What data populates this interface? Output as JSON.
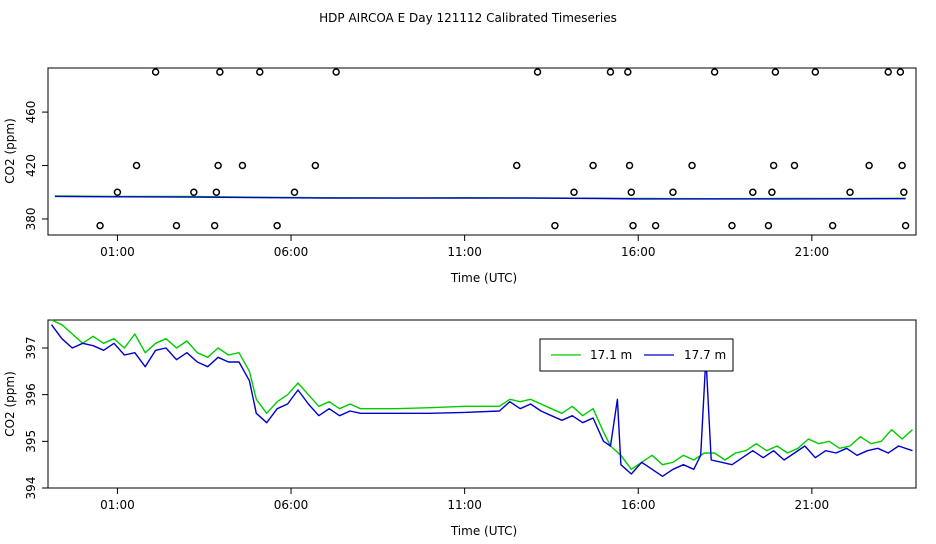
{
  "title": "HDP AIRCOA E  Day 121112  Calibrated Timeseries",
  "chart_data": [
    {
      "type": "scatter",
      "xlabel": "Time (UTC)",
      "ylabel": "CO2 (ppm)",
      "xlim": [
        -1.0,
        24.0
      ],
      "ylim": [
        368,
        493
      ],
      "x_ticks": [
        1,
        6,
        11,
        16,
        21
      ],
      "x_tick_labels": [
        "01:00",
        "06:00",
        "11:00",
        "16:00",
        "21:00"
      ],
      "y_ticks": [
        380,
        420,
        460
      ],
      "y_tick_labels": [
        "380",
        "420",
        "460"
      ],
      "grid": false,
      "points_x": [
        0.5,
        1.0,
        1.55,
        2.1,
        2.7,
        3.2,
        3.8,
        3.85,
        3.9,
        3.95,
        4.6,
        5.1,
        5.6,
        6.1,
        6.7,
        7.3,
        12.5,
        13.1,
        13.6,
        14.15,
        14.7,
        15.2,
        15.7,
        15.75,
        15.8,
        15.85,
        16.5,
        17.0,
        17.55,
        18.2,
        18.7,
        19.3,
        19.75,
        19.85,
        19.9,
        19.95,
        20.5,
        21.1,
        21.6,
        22.1,
        22.65,
        23.2,
        23.55,
        23.6,
        23.65,
        23.7
      ],
      "points_y": [
        375,
        400,
        420,
        490,
        375,
        400,
        375,
        400,
        420,
        490,
        420,
        490,
        375,
        400,
        420,
        490,
        420,
        490,
        375,
        400,
        420,
        490,
        490,
        420,
        400,
        375,
        375,
        400,
        420,
        490,
        375,
        400,
        375,
        400,
        420,
        490,
        420,
        490,
        375,
        400,
        420,
        490,
        490,
        420,
        400,
        375
      ],
      "series": [
        {
          "x": [
            -0.8,
            1,
            3,
            5,
            7,
            9,
            11,
            13,
            15,
            16,
            18,
            20,
            22,
            23.7
          ],
          "y": [
            397.2,
            396.9,
            396.8,
            396.3,
            395.9,
            395.8,
            395.9,
            395.8,
            395.5,
            395.3,
            395.2,
            395.3,
            395.4,
            395.5
          ]
        },
        {
          "x": [
            -0.8,
            1,
            3,
            5,
            7,
            9,
            11,
            13,
            15,
            16,
            18,
            20,
            22,
            23.7
          ],
          "y": [
            396.9,
            396.6,
            396.4,
            396.0,
            395.6,
            395.6,
            395.6,
            395.6,
            395.3,
            395.0,
            395.0,
            395.0,
            395.1,
            395.2
          ]
        }
      ]
    },
    {
      "type": "line",
      "xlabel": "Time (UTC)",
      "ylabel": "CO2 (ppm)",
      "xlim": [
        -1.0,
        24.0
      ],
      "ylim": [
        394,
        397.6
      ],
      "x_ticks": [
        1,
        6,
        11,
        16,
        21
      ],
      "x_tick_labels": [
        "01:00",
        "06:00",
        "11:00",
        "16:00",
        "21:00"
      ],
      "y_ticks": [
        394,
        395,
        396,
        397
      ],
      "y_tick_labels": [
        "394",
        "395",
        "396",
        "397"
      ],
      "grid": false,
      "legend_position": "top-right",
      "series": [
        {
          "name": "17.1 m",
          "color": "#00cc00",
          "x": [
            -0.9,
            -0.6,
            -0.3,
            0.0,
            0.3,
            0.6,
            0.9,
            1.2,
            1.5,
            1.8,
            2.1,
            2.4,
            2.7,
            3.0,
            3.3,
            3.6,
            3.9,
            4.2,
            4.5,
            4.8,
            5.0,
            5.3,
            5.6,
            5.9,
            6.2,
            6.5,
            6.8,
            7.1,
            7.4,
            7.7,
            8.0,
            9.0,
            10.0,
            11.0,
            12.0,
            12.3,
            12.6,
            12.9,
            13.2,
            13.5,
            13.8,
            14.1,
            14.4,
            14.7,
            15.0,
            15.2,
            15.5,
            15.8,
            16.1,
            16.4,
            16.7,
            17.0,
            17.3,
            17.6,
            17.9,
            18.2,
            18.5,
            18.8,
            19.1,
            19.4,
            19.7,
            20.0,
            20.3,
            20.6,
            20.9,
            21.2,
            21.5,
            21.8,
            22.1,
            22.4,
            22.7,
            23.0,
            23.3,
            23.6,
            23.9
          ],
          "y": [
            397.7,
            397.5,
            397.3,
            397.1,
            397.25,
            397.1,
            397.2,
            397.0,
            397.3,
            396.9,
            397.1,
            397.2,
            397.0,
            397.15,
            396.9,
            396.8,
            397.0,
            396.85,
            396.9,
            396.5,
            395.9,
            395.6,
            395.85,
            396.0,
            396.25,
            396.0,
            395.75,
            395.85,
            395.7,
            395.8,
            395.7,
            395.7,
            395.72,
            395.75,
            395.75,
            395.9,
            395.85,
            395.9,
            395.8,
            395.7,
            395.6,
            395.75,
            395.55,
            395.7,
            395.2,
            394.9,
            394.7,
            394.4,
            394.55,
            394.7,
            394.5,
            394.55,
            394.7,
            394.6,
            394.75,
            394.75,
            394.6,
            394.75,
            394.8,
            394.95,
            394.8,
            394.9,
            394.75,
            394.85,
            395.05,
            394.95,
            395.0,
            394.85,
            394.9,
            395.1,
            394.95,
            395.0,
            395.25,
            395.05,
            395.25
          ]
        },
        {
          "name": "17.7 m",
          "color": "#0000cc",
          "x": [
            -0.9,
            -0.6,
            -0.3,
            0.0,
            0.3,
            0.6,
            0.9,
            1.2,
            1.5,
            1.8,
            2.1,
            2.4,
            2.7,
            3.0,
            3.3,
            3.6,
            3.9,
            4.2,
            4.5,
            4.8,
            5.0,
            5.3,
            5.6,
            5.9,
            6.2,
            6.5,
            6.8,
            7.1,
            7.4,
            7.7,
            8.0,
            9.0,
            10.0,
            11.0,
            12.0,
            12.3,
            12.6,
            12.9,
            13.2,
            13.5,
            13.8,
            14.1,
            14.4,
            14.7,
            15.0,
            15.2,
            15.4,
            15.5,
            15.8,
            16.1,
            16.4,
            16.7,
            17.0,
            17.3,
            17.6,
            17.8,
            17.95,
            18.1,
            18.4,
            18.7,
            19.0,
            19.3,
            19.6,
            19.9,
            20.2,
            20.5,
            20.8,
            21.1,
            21.4,
            21.7,
            22.0,
            22.3,
            22.6,
            22.9,
            23.2,
            23.5,
            23.9
          ],
          "y": [
            397.5,
            397.2,
            397.0,
            397.1,
            397.05,
            396.95,
            397.1,
            396.85,
            396.9,
            396.6,
            396.95,
            397.0,
            396.75,
            396.9,
            396.7,
            396.6,
            396.8,
            396.7,
            396.7,
            396.3,
            395.6,
            395.4,
            395.7,
            395.8,
            396.1,
            395.8,
            395.55,
            395.7,
            395.55,
            395.65,
            395.6,
            395.6,
            395.6,
            395.62,
            395.65,
            395.85,
            395.7,
            395.8,
            395.65,
            395.55,
            395.45,
            395.55,
            395.4,
            395.5,
            395.0,
            394.9,
            395.9,
            394.5,
            394.3,
            394.55,
            394.4,
            394.25,
            394.4,
            394.5,
            394.4,
            394.7,
            396.8,
            394.6,
            394.55,
            394.5,
            394.65,
            394.8,
            394.65,
            394.8,
            394.6,
            394.75,
            394.9,
            394.65,
            394.8,
            394.75,
            394.85,
            394.7,
            394.8,
            394.85,
            394.75,
            394.9,
            394.8
          ]
        }
      ]
    }
  ]
}
